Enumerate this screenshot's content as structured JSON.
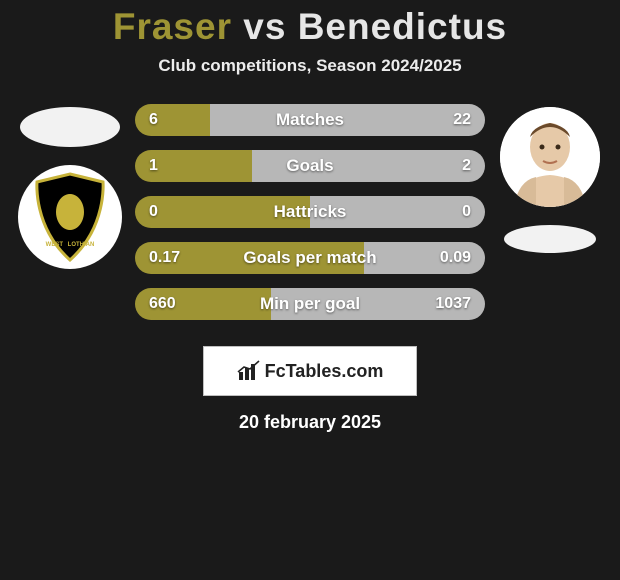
{
  "title": {
    "text": "Fraser vs Benedictus",
    "color_left": "#9e9434",
    "color_right": "#e6e6e6",
    "fontsize": 37
  },
  "subtitle": {
    "text": "Club competitions, Season 2024/2025",
    "color": "#ececec",
    "fontsize": 17
  },
  "colors": {
    "background": "#1a1a1a",
    "player1": "#9e9434",
    "player2": "#b7b7b7",
    "bar_text": "#ffffff"
  },
  "bars": {
    "label_fontsize": 17,
    "value_fontsize": 16,
    "height": 32,
    "radius": 16,
    "rows": [
      {
        "label": "Matches",
        "left_val": "6",
        "right_val": "22",
        "left_pct": 21.4,
        "right_pct": 78.6
      },
      {
        "label": "Goals",
        "left_val": "1",
        "right_val": "2",
        "left_pct": 33.3,
        "right_pct": 66.7
      },
      {
        "label": "Hattricks",
        "left_val": "0",
        "right_val": "0",
        "left_pct": 50.0,
        "right_pct": 50.0
      },
      {
        "label": "Goals per match",
        "left_val": "0.17",
        "right_val": "0.09",
        "left_pct": 65.4,
        "right_pct": 34.6
      },
      {
        "label": "Min per goal",
        "left_val": "660",
        "right_val": "1037",
        "left_pct": 38.9,
        "right_pct": 61.1
      }
    ]
  },
  "player1": {
    "name": "Fraser",
    "badge": {
      "bg": "#000000",
      "border": "#c7b33a",
      "text_top": "WEST",
      "text_bottom": "LOTHIAN"
    }
  },
  "player2": {
    "name": "Benedictus",
    "photo_bg": "#ffffff"
  },
  "footer": {
    "brand": "FcTables.com",
    "brand_fontsize": 18,
    "date": "20 february 2025",
    "date_fontsize": 18
  }
}
